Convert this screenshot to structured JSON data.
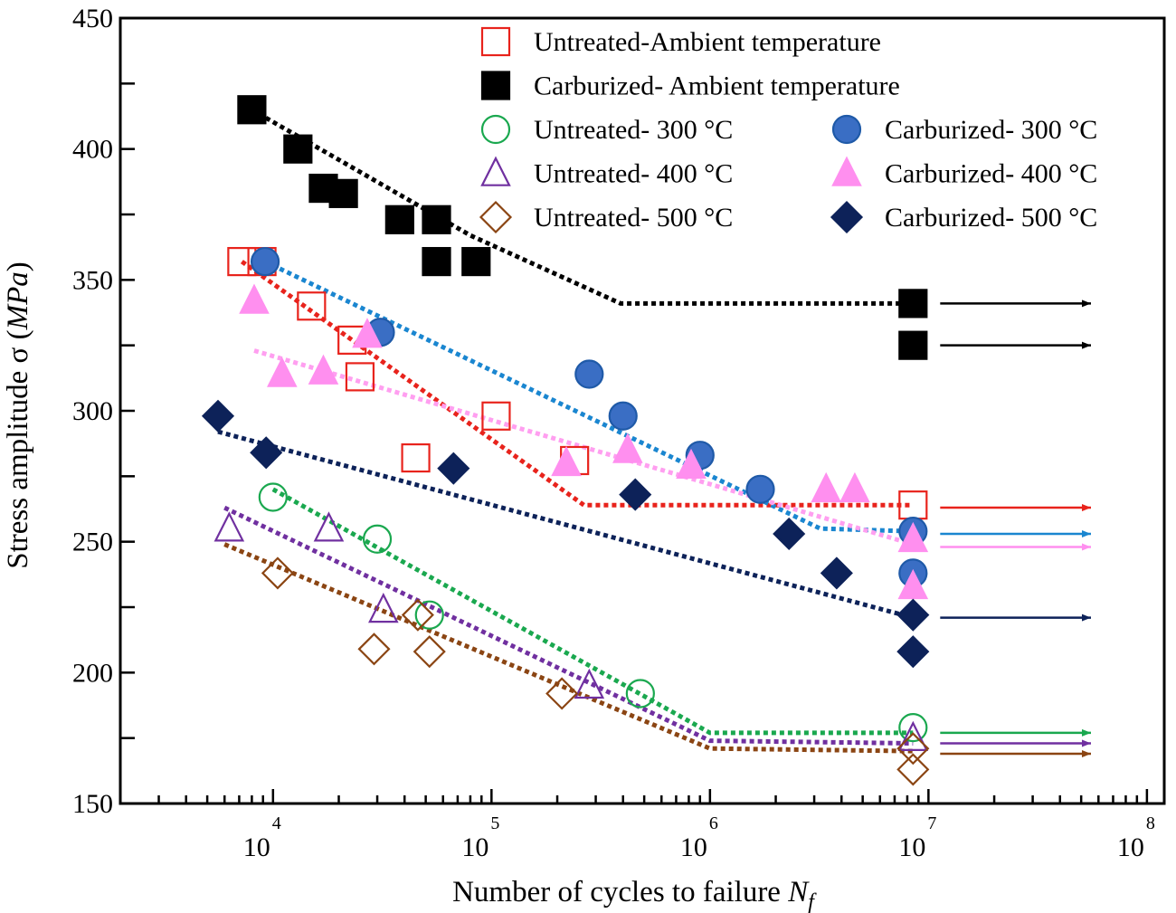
{
  "chart_data": {
    "type": "scatter",
    "xlabel": "Number of cycles to failure ",
    "xlabel_symbol": "N",
    "xlabel_subscript": "f",
    "ylabel": "Stress amplitude σ (",
    "ylabel_unit": "MPa",
    "ylabel_close": ")",
    "xscale": "log",
    "xlim": [
      2000,
      120000000
    ],
    "ylim": [
      150,
      450
    ],
    "xticks": [
      {
        "value": 10000,
        "base": "10",
        "exp": "4"
      },
      {
        "value": 100000,
        "base": "10",
        "exp": "5"
      },
      {
        "value": 1000000,
        "base": "10",
        "exp": "6"
      },
      {
        "value": 10000000,
        "base": "10",
        "exp": "7"
      },
      {
        "value": 100000000,
        "base": "10",
        "exp": "8"
      }
    ],
    "yticks": [
      "150",
      "200",
      "250",
      "300",
      "350",
      "400",
      "450"
    ],
    "runout_x": 8500000,
    "legend_position": "top-right",
    "series": [
      {
        "name": "Untreated-Ambient temperature",
        "marker": "square-open",
        "color": "#e8231c",
        "points": [
          [
            7200,
            357
          ],
          [
            8900,
            357
          ],
          [
            15000,
            340
          ],
          [
            23000,
            327
          ],
          [
            25000,
            313
          ],
          [
            105000,
            298
          ],
          [
            45000,
            282
          ],
          [
            240000,
            281
          ],
          [
            8500000,
            264
          ]
        ],
        "fit": [
          [
            7200,
            357
          ],
          [
            265000,
            264
          ],
          [
            8500000,
            264
          ]
        ]
      },
      {
        "name": "Carburized- Ambient temperature",
        "marker": "square-filled",
        "color": "#000000",
        "points": [
          [
            8000,
            415
          ],
          [
            13000,
            400
          ],
          [
            17000,
            385
          ],
          [
            21000,
            383
          ],
          [
            38000,
            373
          ],
          [
            56000,
            373
          ],
          [
            56000,
            357
          ],
          [
            85000,
            357
          ],
          [
            8500000,
            341
          ],
          [
            8500000,
            325
          ]
        ],
        "fit": [
          [
            8000,
            415
          ],
          [
            80000,
            367
          ],
          [
            390000,
            341
          ],
          [
            8500000,
            341
          ]
        ]
      },
      {
        "name": "Untreated- 300 °C",
        "marker": "circle-open",
        "color": "#1aa84f",
        "points": [
          [
            10000,
            267
          ],
          [
            30000,
            251
          ],
          [
            52000,
            222
          ],
          [
            480000,
            192
          ],
          [
            8500000,
            179
          ]
        ],
        "fit": [
          [
            10000,
            270
          ],
          [
            1000000,
            177
          ],
          [
            8500000,
            177
          ]
        ]
      },
      {
        "name": "Untreated- 400 °C",
        "marker": "triangle-open",
        "color": "#7030a0",
        "points": [
          [
            6300,
            255
          ],
          [
            18000,
            255
          ],
          [
            32000,
            224
          ],
          [
            280000,
            195
          ],
          [
            8500000,
            175
          ]
        ],
        "fit": [
          [
            6000,
            263
          ],
          [
            1000000,
            174
          ],
          [
            8500000,
            173
          ]
        ]
      },
      {
        "name": "Untreated- 500 °C",
        "marker": "diamond-open",
        "color": "#8b4513",
        "points": [
          [
            10500,
            238
          ],
          [
            29000,
            209
          ],
          [
            52000,
            208
          ],
          [
            46000,
            222
          ],
          [
            210000,
            192
          ],
          [
            8500000,
            171
          ],
          [
            8500000,
            163
          ]
        ],
        "fit": [
          [
            6000,
            249
          ],
          [
            1000000,
            171
          ],
          [
            8500000,
            170
          ]
        ]
      },
      {
        "name": "Carburized- 300 °C",
        "marker": "circle-filled",
        "color": "#3a6ec4",
        "points": [
          [
            9200,
            357
          ],
          [
            31000,
            330
          ],
          [
            280000,
            314
          ],
          [
            400000,
            298
          ],
          [
            900000,
            283
          ],
          [
            1700000,
            270
          ],
          [
            8500000,
            254
          ],
          [
            8500000,
            238
          ]
        ],
        "fit": [
          [
            9200,
            357
          ],
          [
            3200000,
            255
          ],
          [
            8500000,
            254
          ]
        ]
      },
      {
        "name": "Carburized- 400 °C",
        "marker": "triangle-filled",
        "color": "#ff8fef",
        "points": [
          [
            8200,
            342
          ],
          [
            11000,
            314
          ],
          [
            17000,
            315
          ],
          [
            27000,
            329
          ],
          [
            220000,
            280
          ],
          [
            420000,
            285
          ],
          [
            820000,
            279
          ],
          [
            3400000,
            270
          ],
          [
            4600000,
            270
          ],
          [
            8500000,
            251
          ],
          [
            8500000,
            233
          ]
        ],
        "fit": [
          [
            8200,
            323
          ],
          [
            1000000,
            272
          ],
          [
            8500000,
            249
          ]
        ]
      },
      {
        "name": "Carburized- 500 °C",
        "marker": "diamond-filled",
        "color": "#0d2259",
        "points": [
          [
            5600,
            298
          ],
          [
            9300,
            284
          ],
          [
            67000,
            278
          ],
          [
            455000,
            268
          ],
          [
            2300000,
            253
          ],
          [
            3800000,
            238
          ],
          [
            8500000,
            222
          ],
          [
            8500000,
            208
          ]
        ],
        "fit": [
          [
            5600,
            292
          ],
          [
            8500000,
            221
          ]
        ]
      }
    ]
  }
}
